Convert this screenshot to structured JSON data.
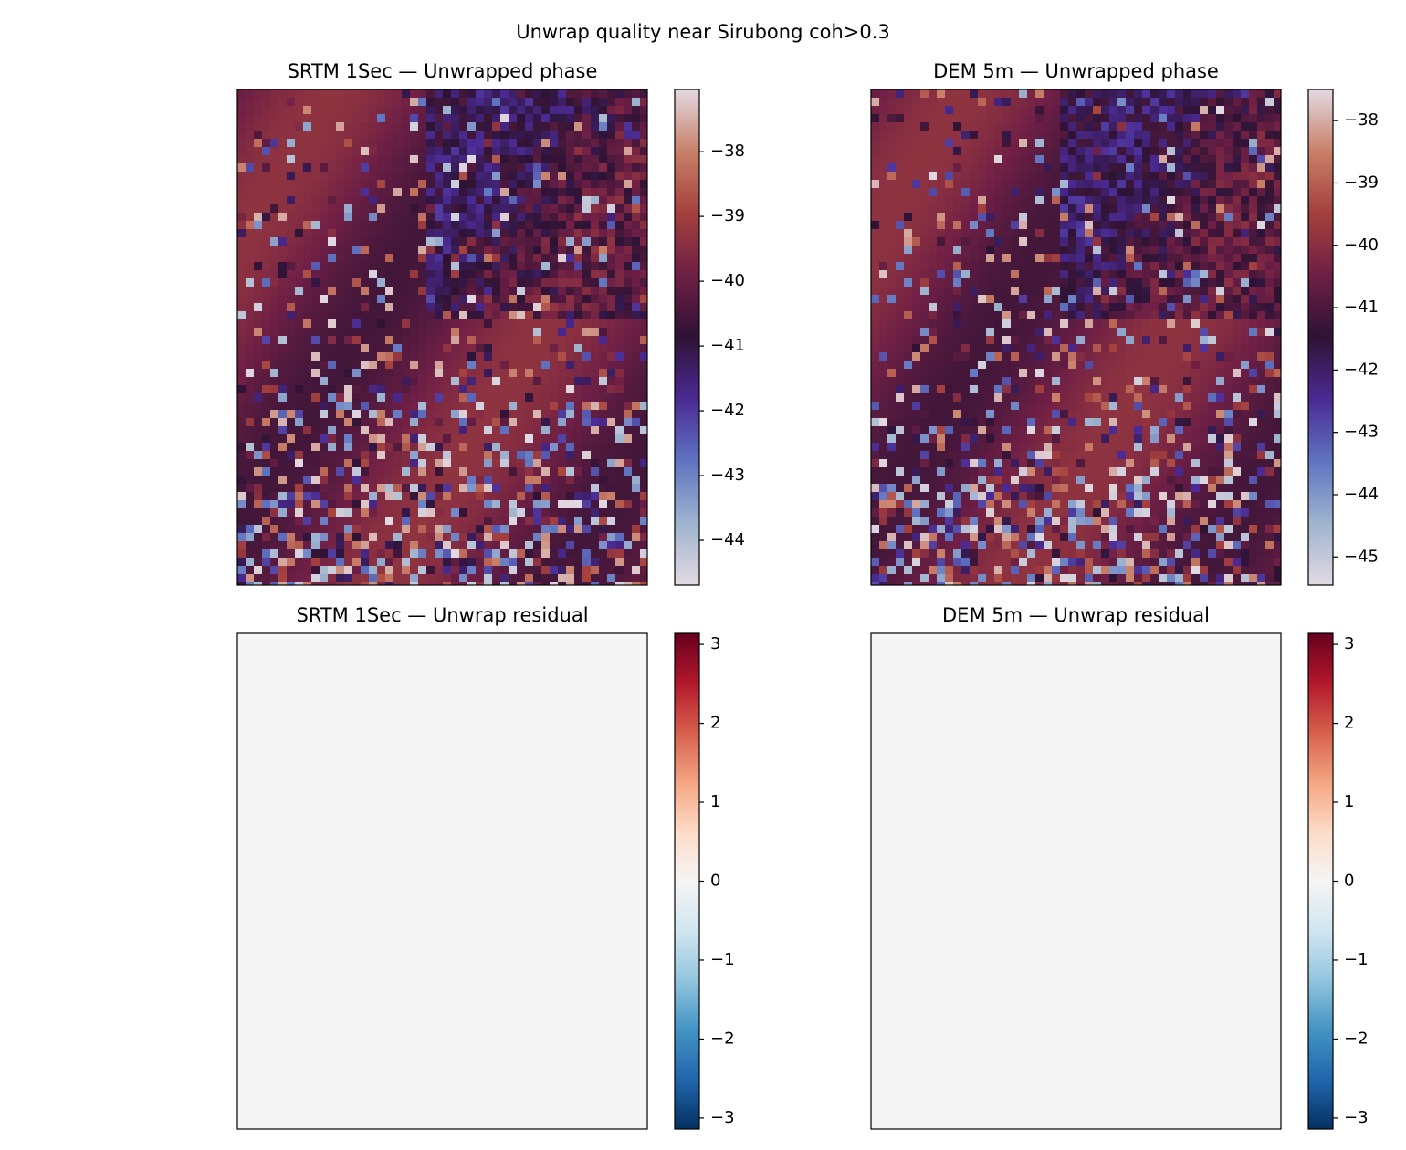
{
  "title": "Unwrap quality near Sirubong  coh>0.3",
  "chart_data": [
    {
      "type": "heatmap",
      "title": "SRTM 1Sec — Unwrapped phase",
      "clim": [
        -44.69,
        -37.04
      ],
      "cticks": [
        {
          "value": -38,
          "label": "−38"
        },
        {
          "value": -39,
          "label": "−39"
        },
        {
          "value": -40,
          "label": "−40"
        },
        {
          "value": -41,
          "label": "−41"
        },
        {
          "value": -42,
          "label": "−42"
        },
        {
          "value": -43,
          "label": "−43"
        },
        {
          "value": -44,
          "label": "−44"
        }
      ],
      "colors": [
        "#e2d9e2",
        "#9fb4cf",
        "#5f74c1",
        "#4b2a93",
        "#2e1335",
        "#6e1f45",
        "#a4403d",
        "#c98069",
        "#e2d9e2"
      ]
    },
    {
      "type": "heatmap",
      "title": "DEM 5m — Unwrapped phase",
      "clim": [
        -45.45,
        -37.5
      ],
      "cticks": [
        {
          "value": -38,
          "label": "−38"
        },
        {
          "value": -39,
          "label": "−39"
        },
        {
          "value": -40,
          "label": "−40"
        },
        {
          "value": -41,
          "label": "−41"
        },
        {
          "value": -42,
          "label": "−42"
        },
        {
          "value": -43,
          "label": "−43"
        },
        {
          "value": -44,
          "label": "−44"
        },
        {
          "value": -45,
          "label": "−45"
        }
      ],
      "colors": [
        "#e2d9e2",
        "#9fb4cf",
        "#5f74c1",
        "#4b2a93",
        "#2e1335",
        "#6e1f45",
        "#a4403d",
        "#c98069",
        "#e2d9e2"
      ]
    },
    {
      "type": "uniform",
      "title": "SRTM 1Sec — Unwrap residual",
      "clim": [
        -3.14,
        3.14
      ],
      "value": 0,
      "cticks": [
        3,
        2,
        1,
        0,
        {
          "value": -1,
          "label": "−1"
        },
        {
          "value": -2,
          "label": "−2"
        },
        {
          "value": -3,
          "label": "−3"
        }
      ],
      "colors": [
        "#053061",
        "#2166ac",
        "#4393c3",
        "#92c5de",
        "#d1e5f0",
        "#f5f5f5",
        "#fddbc7",
        "#f4a582",
        "#d6604d",
        "#b2182b",
        "#67001f"
      ]
    },
    {
      "type": "uniform",
      "title": "DEM 5m — Unwrap residual",
      "clim": [
        -3.14,
        3.14
      ],
      "value": 0,
      "cticks": [
        3,
        2,
        1,
        0,
        {
          "value": -1,
          "label": "−1"
        },
        {
          "value": -2,
          "label": "−2"
        },
        {
          "value": -3,
          "label": "−3"
        }
      ],
      "colors": [
        "#053061",
        "#2166ac",
        "#4393c3",
        "#92c5de",
        "#d1e5f0",
        "#f5f5f5",
        "#fddbc7",
        "#f4a582",
        "#d6604d",
        "#b2182b",
        "#67001f"
      ]
    }
  ]
}
